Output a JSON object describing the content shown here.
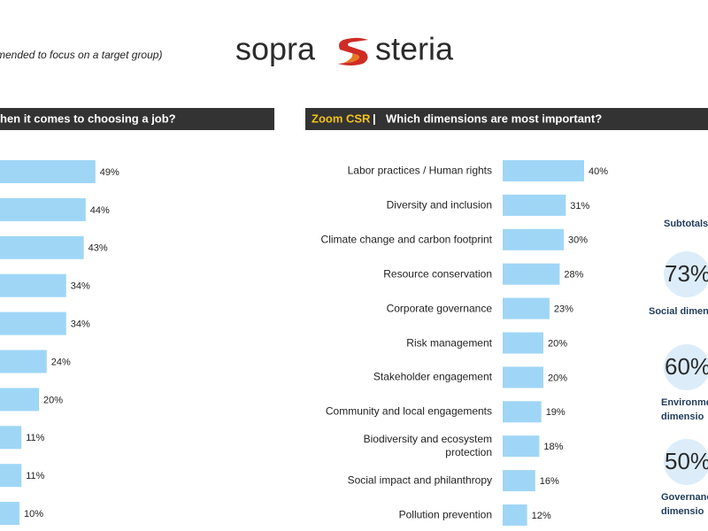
{
  "subtitle_fragment": "mended to focus on a target group)",
  "logo": {
    "left": "sopra",
    "right": "steria"
  },
  "chart_data": [
    {
      "type": "bar",
      "orientation": "horizontal",
      "title": "hen it comes to choosing a job?",
      "categories": [
        null,
        null,
        null,
        null,
        null,
        null,
        null,
        null,
        null,
        null
      ],
      "values": [
        49,
        44,
        43,
        34,
        34,
        24,
        20,
        11,
        11,
        10
      ],
      "value_labels": [
        "49%",
        "44%",
        "43%",
        "34%",
        "34%",
        "24%",
        "20%",
        "11%",
        "11%",
        "10%"
      ],
      "color": "#9fd6f6",
      "xlim": [
        0,
        50
      ]
    },
    {
      "type": "bar",
      "orientation": "horizontal",
      "title_highlight": "Zoom CSR",
      "title_separator": "|",
      "title": "Which dimensions are most important?",
      "categories": [
        "Labor practices / Human rights",
        "Diversity and inclusion",
        "Climate change and carbon footprint",
        "Resource conservation",
        "Corporate governance",
        "Risk management",
        "Stakeholder engagement",
        "Community and local engagements",
        "Biodiversity and ecosystem protection",
        "Social impact and philanthropy",
        "Pollution prevention"
      ],
      "values": [
        40,
        31,
        30,
        28,
        23,
        20,
        20,
        19,
        18,
        16,
        12
      ],
      "value_labels": [
        "40%",
        "31%",
        "30%",
        "28%",
        "23%",
        "20%",
        "20%",
        "19%",
        "18%",
        "16%",
        "12%"
      ],
      "color": "#9fd6f6",
      "xlim": [
        0,
        50
      ]
    }
  ],
  "subtotals": {
    "title": "Subtotals",
    "items": [
      {
        "value": "73%",
        "label_lines": [
          "Social dimen"
        ]
      },
      {
        "value": "60%",
        "label_lines": [
          "Environmen",
          "dimensio"
        ]
      },
      {
        "value": "50%",
        "label_lines": [
          "Governanc",
          "dimensio"
        ]
      }
    ]
  }
}
